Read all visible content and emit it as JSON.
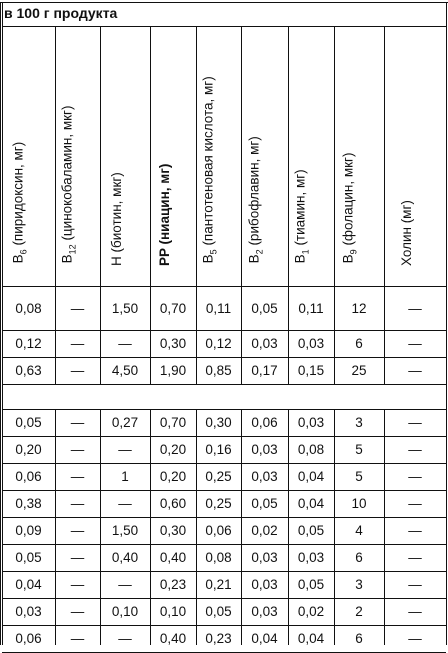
{
  "caption": "в 100 г продукта",
  "headers": [
    {
      "main": "B",
      "sub": "6",
      "rest": " (пиридоксин, мг)"
    },
    {
      "main": "B",
      "sub": "12",
      "rest": " (цинокобаламин, мкг)"
    },
    {
      "main": "H (биотин, мкг)",
      "sub": "",
      "rest": ""
    },
    {
      "main": "PP (ниацин, мг)",
      "sub": "",
      "rest": "",
      "bold": true
    },
    {
      "main": "B",
      "sub": "5",
      "rest": " (пантотеновая кислота, мг)"
    },
    {
      "main": "B",
      "sub": "2",
      "rest": " (рибофлавин, мг)"
    },
    {
      "main": "B",
      "sub": "1",
      "rest": " (тиамин, мг)"
    },
    {
      "main": "B",
      "sub": "9",
      "rest": " (фолацин, мкг)"
    },
    {
      "main": "Холин (мг)",
      "sub": "",
      "rest": ""
    }
  ],
  "groups": [
    [
      [
        "0,08",
        "—",
        "1,50",
        "0,70",
        "0,11",
        "0,05",
        "0,11",
        "12",
        "—"
      ],
      [
        "0,12",
        "—",
        "—",
        "0,30",
        "0,12",
        "0,03",
        "0,03",
        "6",
        "—"
      ],
      [
        "0,63",
        "—",
        "4,50",
        "1,90",
        "0,85",
        "0,17",
        "0,15",
        "25",
        "—"
      ]
    ],
    [
      [
        "0,05",
        "—",
        "0,27",
        "0,70",
        "0,30",
        "0,06",
        "0,03",
        "3",
        "—"
      ],
      [
        "0,20",
        "—",
        "—",
        "0,20",
        "0,16",
        "0,03",
        "0,08",
        "5",
        "—"
      ],
      [
        "0,06",
        "—",
        "1",
        "0,20",
        "0,25",
        "0,03",
        "0,04",
        "5",
        "—"
      ],
      [
        "0,38",
        "—",
        "—",
        "0,60",
        "0,25",
        "0,05",
        "0,04",
        "10",
        "—"
      ],
      [
        "0,09",
        "—",
        "1,50",
        "0,30",
        "0,06",
        "0,02",
        "0,05",
        "4",
        "—"
      ],
      [
        "0,05",
        "—",
        "0,40",
        "0,40",
        "0,08",
        "0,03",
        "0,03",
        "6",
        "—"
      ],
      [
        "0,04",
        "—",
        "—",
        "0,23",
        "0,21",
        "0,03",
        "0,05",
        "3",
        "—"
      ],
      [
        "0,03",
        "—",
        "0,10",
        "0,10",
        "0,05",
        "0,03",
        "0,02",
        "2",
        "—"
      ],
      [
        "0,06",
        "—",
        "—",
        "0,40",
        "0,23",
        "0,04",
        "0,04",
        "6",
        "—"
      ]
    ]
  ]
}
